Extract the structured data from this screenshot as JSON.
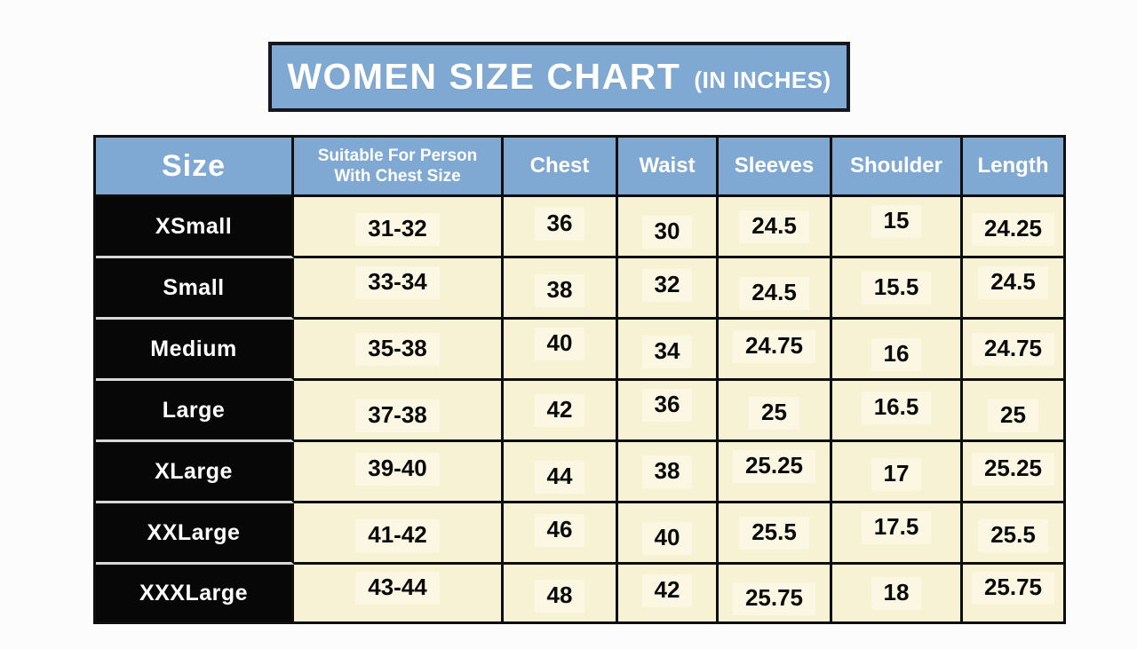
{
  "title": {
    "main": "WOMEN SIZE CHART",
    "suffix": "(IN INCHES)"
  },
  "chart_data": {
    "type": "table",
    "title": "WOMEN SIZE CHART (IN INCHES)",
    "units": "inches",
    "columns": [
      "Size",
      "Suitable For Person With Chest Size",
      "Chest",
      "Waist",
      "Sleeves",
      "Shoulder",
      "Length"
    ],
    "rows": [
      [
        "XSmall",
        "31-32",
        "36",
        "30",
        "24.5",
        "15",
        "24.25"
      ],
      [
        "Small",
        "33-34",
        "38",
        "32",
        "24.5",
        "15.5",
        "24.5"
      ],
      [
        "Medium",
        "35-38",
        "40",
        "34",
        "24.75",
        "16",
        "24.75"
      ],
      [
        "Large",
        "37-38",
        "42",
        "36",
        "25",
        "16.5",
        "25"
      ],
      [
        "XLarge",
        "39-40",
        "44",
        "38",
        "25.25",
        "17",
        "25.25"
      ],
      [
        "XXLarge",
        "41-42",
        "46",
        "40",
        "25.5",
        "17.5",
        "25.5"
      ],
      [
        "XXXLarge",
        "43-44",
        "48",
        "42",
        "25.75",
        "18",
        "25.75"
      ]
    ]
  },
  "table": {
    "header_display": {
      "fit": "Suitable For Person\nWith Chest Size"
    }
  },
  "colors": {
    "header_blue": "#7fa9d2",
    "title_border": "#16161f",
    "cell_cream": "#f7f2d4",
    "cell_patch": "#fbf7e2",
    "size_cell_black": "#070707",
    "grid_border": "#0e0e0e",
    "size_row_divider": "#d8d8d8",
    "page_background": "#fcfcfc"
  }
}
